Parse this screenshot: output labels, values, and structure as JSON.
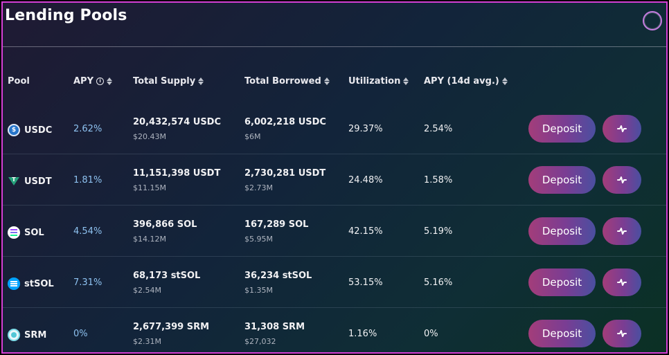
{
  "page": {
    "title": "Lending Pools"
  },
  "table": {
    "headers": {
      "pool": "Pool",
      "apy": "APY",
      "total_supply": "Total Supply",
      "total_borrowed": "Total Borrowed",
      "utilization": "Utilization",
      "apy_14d": "APY (14d avg.)"
    },
    "deposit_label": "Deposit",
    "rows": [
      {
        "icon": "usdc-token-icon",
        "pool": "USDC",
        "apy": "2.62%",
        "supply": "20,432,574 USDC",
        "supply_usd": "$20.43M",
        "borrowed": "6,002,218 USDC",
        "borrowed_usd": "$6M",
        "utilization": "29.37%",
        "apy_14d": "2.54%"
      },
      {
        "icon": "usdt-token-icon",
        "pool": "USDT",
        "apy": "1.81%",
        "supply": "11,151,398 USDT",
        "supply_usd": "$11.15M",
        "borrowed": "2,730,281 USDT",
        "borrowed_usd": "$2.73M",
        "utilization": "24.48%",
        "apy_14d": "1.58%"
      },
      {
        "icon": "sol-token-icon",
        "pool": "SOL",
        "apy": "4.54%",
        "supply": "396,866 SOL",
        "supply_usd": "$14.12M",
        "borrowed": "167,289 SOL",
        "borrowed_usd": "$5.95M",
        "utilization": "42.15%",
        "apy_14d": "5.19%"
      },
      {
        "icon": "stsol-token-icon",
        "pool": "stSOL",
        "apy": "7.31%",
        "supply": "68,173 stSOL",
        "supply_usd": "$2.54M",
        "borrowed": "36,234 stSOL",
        "borrowed_usd": "$1.35M",
        "utilization": "53.15%",
        "apy_14d": "5.16%"
      },
      {
        "icon": "srm-token-icon",
        "pool": "SRM",
        "apy": "0%",
        "supply": "2,677,399 SRM",
        "supply_usd": "$2.31M",
        "borrowed": "31,308 SRM",
        "borrowed_usd": "$27,032",
        "utilization": "1.16%",
        "apy_14d": "0%"
      }
    ]
  },
  "colors": {
    "frame_border": "#d63fd6",
    "accent_apy": "#8ec2f0",
    "button_start": "#a33d7a",
    "button_end": "#4a4fa0"
  }
}
